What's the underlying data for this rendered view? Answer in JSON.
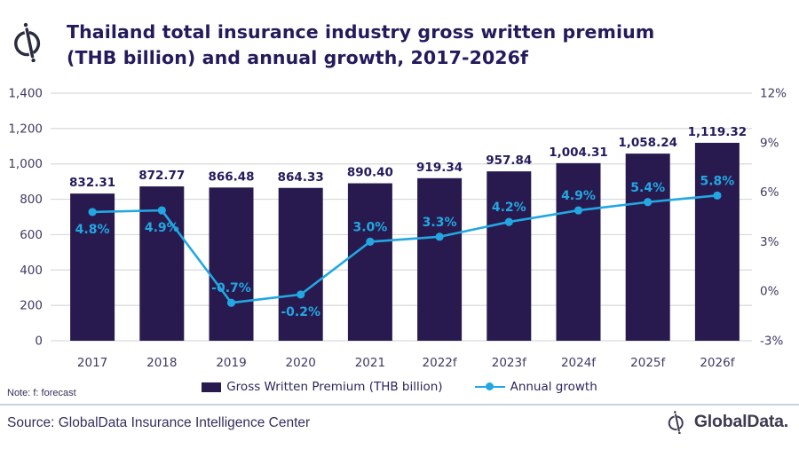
{
  "header": {
    "title_line1": "Thailand total insurance industry gross written premium",
    "title_line2": "(THB billion) and annual growth, 2017-2026f"
  },
  "chart_data": {
    "type": "combo-bar-line",
    "categories": [
      "2017",
      "2018",
      "2019",
      "2020",
      "2021",
      "2022f",
      "2023f",
      "2024f",
      "2025f",
      "2026f"
    ],
    "series": [
      {
        "name": "Gross Written Premium (THB billion)",
        "type": "bar",
        "axis": "left",
        "values": [
          832.31,
          872.77,
          866.48,
          864.33,
          890.4,
          919.34,
          957.84,
          1004.31,
          1058.24,
          1119.32
        ],
        "labels": [
          "832.31",
          "872.77",
          "866.48",
          "864.33",
          "890.40",
          "919.34",
          "957.84",
          "1,004.31",
          "1,058.24",
          "1,119.32"
        ]
      },
      {
        "name": "Annual growth",
        "type": "line",
        "axis": "right",
        "values": [
          4.8,
          4.9,
          -0.7,
          -0.2,
          3.0,
          3.3,
          4.2,
          4.9,
          5.4,
          5.8
        ],
        "labels": [
          "4.8%",
          "4.9%",
          "-0.7%",
          "-0.2%",
          "3.0%",
          "3.3%",
          "4.2%",
          "4.9%",
          "5.4%",
          "5.8%"
        ],
        "label_positions": [
          "below",
          "below",
          "above",
          "below",
          "above",
          "above",
          "above",
          "above",
          "above",
          "above"
        ]
      }
    ],
    "left_axis": {
      "min": 0,
      "max": 1400,
      "step": 200,
      "ticks": [
        "0",
        "200",
        "400",
        "600",
        "800",
        "1,000",
        "1,200",
        "1,400"
      ]
    },
    "right_axis": {
      "min": -3,
      "max": 12,
      "step": 3,
      "ticks": [
        "-3%",
        "0%",
        "3%",
        "6%",
        "9%",
        "12%"
      ]
    },
    "legend": [
      "Gross Written Premium (THB billion)",
      "Annual growth"
    ],
    "legend_position": "bottom",
    "grid": "horizontal"
  },
  "note": "Note: f: forecast",
  "source": "Source: GlobalData Insurance Intelligence Center",
  "brand": "GlobalData.",
  "colors": {
    "bar": "#281A4F",
    "line": "#22A7E2",
    "title": "#241B5C",
    "axis_text": "#3E3A63",
    "grid": "#D9D9D9",
    "divider": "#C8D4DE"
  }
}
